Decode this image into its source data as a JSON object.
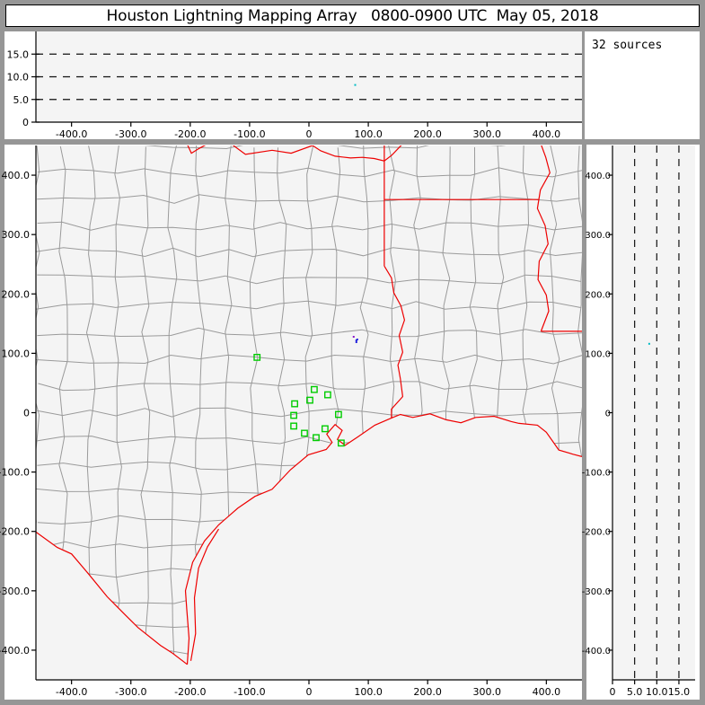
{
  "window_title": "Houston Lightning Mapping Array   0800-0900 UTC  May 05, 2018",
  "sources_panel": {
    "label": "32 sources"
  },
  "colors": {
    "frame": "#969696",
    "plot_bg": "#f4f4f4",
    "margin_bg": "#ffffff",
    "county_line": "#9a9a9a",
    "state_border": "#ee0000",
    "station_marker": "#00cc00",
    "axis": "#000000",
    "grid_dash": "#111111"
  },
  "chart_data": {
    "type": "scatter",
    "title": "Houston Lightning Mapping Array 0800-0900 UTC May 05, 2018",
    "layout": "xlma-style: top panel altitude(km) vs east-west distance(km); main panel plan-view map (km east vs km north, county lines gray, state borders red); right panel north-south distance(km) vs altitude(km); top-right box shows source count",
    "source_count": 32,
    "map_panel": {
      "x_range_km": [
        -460,
        460
      ],
      "y_range_km": [
        -450,
        450
      ],
      "x_tick_values": [
        -400,
        -300,
        -200,
        -100,
        0,
        100,
        200,
        300,
        400
      ],
      "x_tick_labels": [
        "-400.0",
        "-300.0",
        "-200.0",
        "-100.0",
        "0",
        "100.0",
        "200.0",
        "300.0",
        "400.0"
      ],
      "y_tick_values": [
        400,
        300,
        200,
        100,
        0,
        -100,
        -200,
        -300,
        -400
      ],
      "y_tick_labels": [
        "400.0",
        "300.0",
        "200.0",
        "100.0",
        "0",
        "-100.0",
        "-200.0",
        "-300.0",
        "-400.0"
      ],
      "grid": false
    },
    "altitude_axis": {
      "range_km": [
        0,
        20
      ],
      "tick_values": [
        0,
        5,
        10,
        15
      ],
      "tick_labels": [
        "0",
        "5.0",
        "10.0",
        "15.0"
      ],
      "dashed_grid_values": [
        5,
        10,
        15
      ]
    },
    "stations_km": [
      [
        -87.5,
        93.2
      ],
      [
        9.0,
        39.1
      ],
      [
        31.7,
        30.1
      ],
      [
        1.5,
        21.1
      ],
      [
        -24.1,
        15.0
      ],
      [
        -25.6,
        -4.5
      ],
      [
        49.8,
        -3.0
      ],
      [
        -25.6,
        -22.6
      ],
      [
        27.1,
        -27.1
      ],
      [
        -7.5,
        -34.6
      ],
      [
        12.1,
        -42.1
      ],
      [
        54.3,
        -51.1
      ]
    ],
    "lightning_sources": {
      "map_points": [
        {
          "e": 75.4,
          "n": 127.8,
          "color": "#8a18cc"
        },
        {
          "e": 79.9,
          "n": 121.8,
          "color": "#2222dd"
        },
        {
          "e": 81.4,
          "n": 123.3,
          "color": "#2222dd"
        },
        {
          "e": 79.9,
          "n": 118.8,
          "color": "#2222dd"
        }
      ],
      "east_alt_points": [
        {
          "e": 78.0,
          "alt": 8.2,
          "color": "#00bbc4"
        }
      ],
      "alt_north_points": [
        {
          "alt": 8.3,
          "n": 116.0,
          "color": "#00bbc4"
        }
      ]
    }
  }
}
